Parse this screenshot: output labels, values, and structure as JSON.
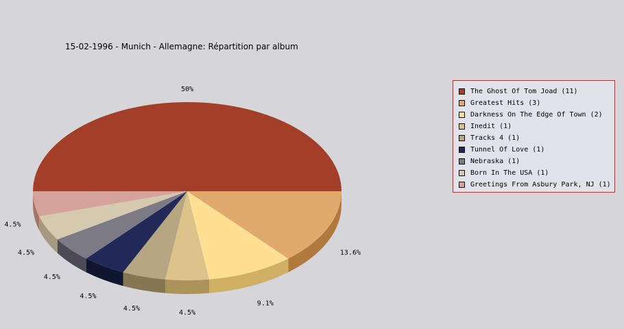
{
  "chart_data": {
    "type": "pie",
    "title": "15-02-1996 - Munich - Allemagne:  Répartition par album",
    "slices": [
      {
        "label": "The Ghost Of Tom Joad (11)",
        "value": 11,
        "percent_label": "50%",
        "color": "#a33f28",
        "side_color": "#720a00"
      },
      {
        "label": "Greatest Hits (3)",
        "value": 3,
        "percent_label": "13.6%",
        "color": "#e0aa6c",
        "side_color": "#b07a3c"
      },
      {
        "label": "Darkness On The Edge Of Town (2)",
        "value": 2,
        "percent_label": "9.1%",
        "color": "#ffdf94",
        "side_color": "#cfaf64"
      },
      {
        "label": "Inedit (1)",
        "value": 1,
        "percent_label": "4.5%",
        "color": "#dbc38b",
        "side_color": "#ab935b"
      },
      {
        "label": "Tracks 4 (1)",
        "value": 1,
        "percent_label": "4.5%",
        "color": "#b7a682",
        "side_color": "#877652"
      },
      {
        "label": "Tunnel Of Love (1)",
        "value": 1,
        "percent_label": "4.5%",
        "color": "#222957",
        "side_color": "#101530"
      },
      {
        "label": "Nebraska (1)",
        "value": 1,
        "percent_label": "4.5%",
        "color": "#7b7a85",
        "side_color": "#4b4a55"
      },
      {
        "label": "Born In The USA (1)",
        "value": 1,
        "percent_label": "4.5%",
        "color": "#d5c9af",
        "side_color": "#a5997f"
      },
      {
        "label": "Greetings From Asbury Park, NJ (1)",
        "value": 1,
        "percent_label": "4.5%",
        "color": "#d5a39a",
        "side_color": "#a5736a"
      }
    ],
    "start_angle_deg": 180,
    "direction": "clockwise",
    "legend_position": "right",
    "grid": false
  }
}
